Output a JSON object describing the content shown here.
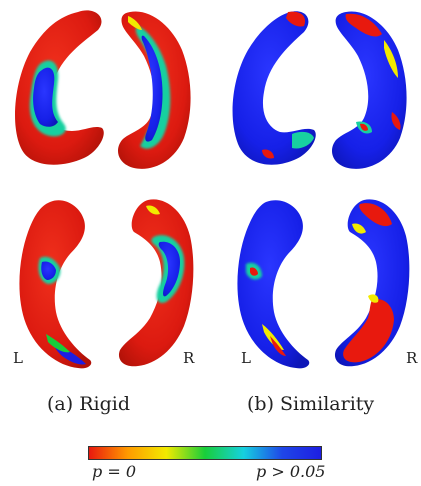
{
  "panels": [
    {
      "caption": "(a) Rigid",
      "left_label": "L",
      "right_label": "R"
    },
    {
      "caption": "(b) Similarity",
      "left_label": "L",
      "right_label": "R"
    }
  ],
  "colorbar": {
    "min_label": "p = 0",
    "max_label": "p > 0.05",
    "colors": [
      "#e8190e",
      "#ff9a00",
      "#f2ea00",
      "#18ce3a",
      "#16d0e0",
      "#1f46e8",
      "#1d1ee2"
    ]
  }
}
